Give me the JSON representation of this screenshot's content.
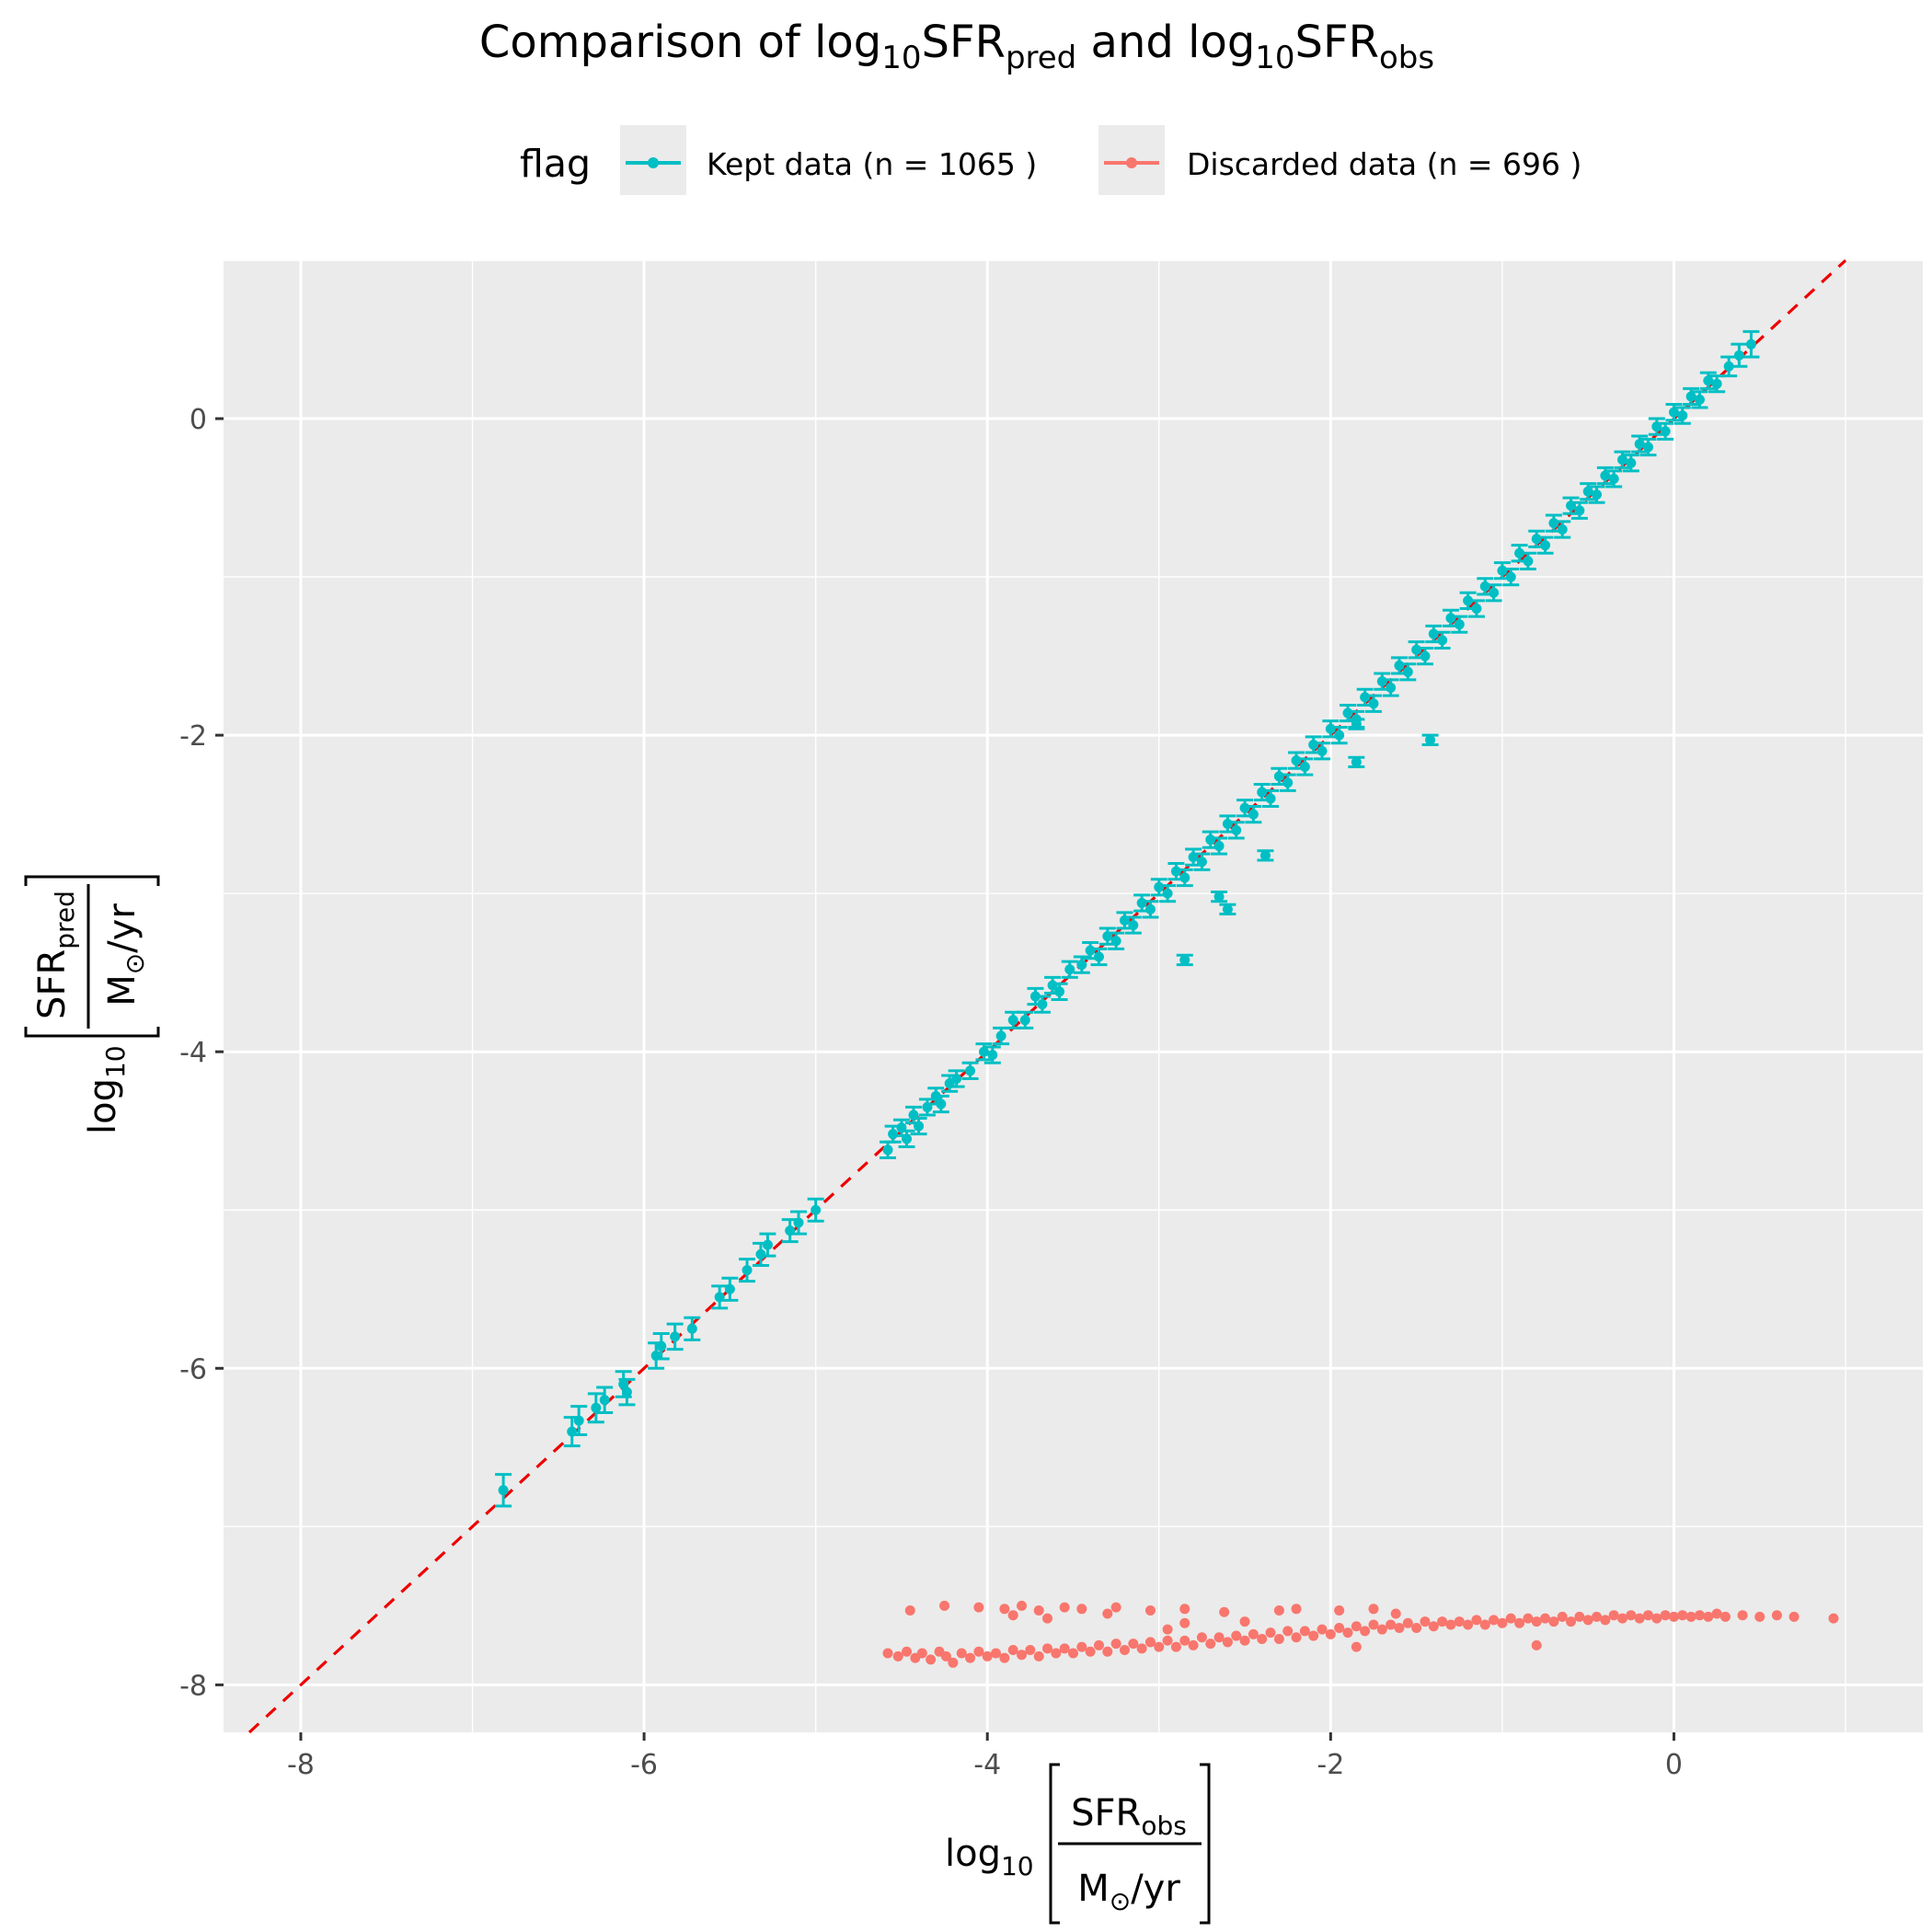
{
  "chart_data": {
    "type": "scatter",
    "title": {
      "prefix": "Comparison of ",
      "log": "log",
      "log_sub": "10",
      "sfr": "SFR",
      "pred_sub": "pred",
      "middle": " and ",
      "obs_sub": "obs"
    },
    "xlabel": {
      "log": "log",
      "log_sub": "10",
      "numerator": "SFR",
      "numerator_sub": "obs",
      "denominator": "M",
      "sun_symbol": "⊙",
      "denominator_rest": "/yr"
    },
    "ylabel": {
      "log": "log",
      "log_sub": "10",
      "numerator": "SFR",
      "numerator_sub": "pred",
      "denominator": "M",
      "sun_symbol": "⊙",
      "denominator_rest": "/yr"
    },
    "xlim": [
      -8.45,
      1.45
    ],
    "ylim": [
      -8.3,
      1.0
    ],
    "x_ticks": [
      -8,
      -6,
      -4,
      -2,
      0
    ],
    "y_ticks": [
      0,
      -2,
      -4,
      -6,
      -8
    ],
    "x_tick_labels": [
      "-8",
      "-6",
      "-4",
      "-2",
      "0"
    ],
    "y_tick_labels": [
      "0",
      "-2",
      "-4",
      "-6",
      "-8"
    ],
    "grid": true,
    "reference_line": {
      "slope": 1,
      "intercept": 0,
      "color": "#ee0000",
      "style": "dashed"
    },
    "legend": {
      "title": "flag",
      "position": "top",
      "entries": [
        {
          "label": "Kept data (n = 1065 )",
          "color": "#00bfc4"
        },
        {
          "label": "Discarded data (n = 696 )",
          "color": "#f8766d"
        }
      ]
    },
    "series": [
      {
        "name": "Kept data (n = 1065 )",
        "color": "#00bfc4",
        "error_bars": true,
        "points": [
          [
            -6.82,
            -6.77,
            0.1
          ],
          [
            -6.42,
            -6.4,
            0.09
          ],
          [
            -6.38,
            -6.33,
            0.09
          ],
          [
            -6.28,
            -6.25,
            0.09
          ],
          [
            -6.23,
            -6.2,
            0.08
          ],
          [
            -6.12,
            -6.1,
            0.08
          ],
          [
            -6.1,
            -6.15,
            0.08
          ],
          [
            -5.93,
            -5.92,
            0.08
          ],
          [
            -5.9,
            -5.86,
            0.08
          ],
          [
            -5.82,
            -5.8,
            0.08
          ],
          [
            -5.72,
            -5.75,
            0.07
          ],
          [
            -5.56,
            -5.55,
            0.07
          ],
          [
            -5.5,
            -5.5,
            0.07
          ],
          [
            -5.4,
            -5.38,
            0.07
          ],
          [
            -5.32,
            -5.28,
            0.07
          ],
          [
            -5.28,
            -5.22,
            0.07
          ],
          [
            -5.15,
            -5.13,
            0.07
          ],
          [
            -5.1,
            -5.08,
            0.07
          ],
          [
            -5.0,
            -5.0,
            0.07
          ],
          [
            -4.58,
            -4.62,
            0.05
          ],
          [
            -4.55,
            -4.52,
            0.05
          ],
          [
            -4.5,
            -4.48,
            0.05
          ],
          [
            -4.47,
            -4.55,
            0.05
          ],
          [
            -4.43,
            -4.4,
            0.05
          ],
          [
            -4.4,
            -4.47,
            0.05
          ],
          [
            -4.35,
            -4.35,
            0.05
          ],
          [
            -4.3,
            -4.28,
            0.05
          ],
          [
            -4.27,
            -4.33,
            0.05
          ],
          [
            -4.22,
            -4.2,
            0.05
          ],
          [
            -4.18,
            -4.17,
            0.05
          ],
          [
            -4.1,
            -4.12,
            0.05
          ],
          [
            -4.02,
            -4.0,
            0.05
          ],
          [
            -3.97,
            -4.02,
            0.05
          ],
          [
            -3.92,
            -3.9,
            0.05
          ],
          [
            -3.85,
            -3.8,
            0.05
          ],
          [
            -3.78,
            -3.8,
            0.05
          ],
          [
            -3.72,
            -3.65,
            0.05
          ],
          [
            -3.68,
            -3.7,
            0.05
          ],
          [
            -3.62,
            -3.58,
            0.05
          ],
          [
            -3.58,
            -3.62,
            0.05
          ],
          [
            -3.52,
            -3.48,
            0.05
          ],
          [
            -3.45,
            -3.45,
            0.05
          ],
          [
            -3.4,
            -3.36,
            0.05
          ],
          [
            -3.35,
            -3.4,
            0.05
          ],
          [
            -3.3,
            -3.27,
            0.05
          ],
          [
            -3.25,
            -3.3,
            0.05
          ],
          [
            -3.2,
            -3.17,
            0.05
          ],
          [
            -3.15,
            -3.2,
            0.05
          ],
          [
            -3.1,
            -3.06,
            0.05
          ],
          [
            -3.05,
            -3.1,
            0.05
          ],
          [
            -3.0,
            -2.96,
            0.05
          ],
          [
            -2.95,
            -3.0,
            0.05
          ],
          [
            -2.9,
            -2.86,
            0.05
          ],
          [
            -2.85,
            -2.9,
            0.05
          ],
          [
            -2.8,
            -2.77,
            0.05
          ],
          [
            -2.75,
            -2.8,
            0.05
          ],
          [
            -2.7,
            -2.66,
            0.05
          ],
          [
            -2.65,
            -2.7,
            0.05
          ],
          [
            -2.6,
            -2.56,
            0.05
          ],
          [
            -2.55,
            -2.6,
            0.05
          ],
          [
            -2.5,
            -2.46,
            0.05
          ],
          [
            -2.45,
            -2.5,
            0.05
          ],
          [
            -2.4,
            -2.36,
            0.05
          ],
          [
            -2.35,
            -2.4,
            0.05
          ],
          [
            -2.3,
            -2.26,
            0.05
          ],
          [
            -2.25,
            -2.3,
            0.05
          ],
          [
            -2.2,
            -2.16,
            0.05
          ],
          [
            -2.15,
            -2.2,
            0.05
          ],
          [
            -2.1,
            -2.06,
            0.05
          ],
          [
            -2.05,
            -2.1,
            0.05
          ],
          [
            -2.0,
            -1.96,
            0.05
          ],
          [
            -1.95,
            -2.0,
            0.05
          ],
          [
            -1.9,
            -1.86,
            0.05
          ],
          [
            -1.85,
            -1.9,
            0.05
          ],
          [
            -1.8,
            -1.76,
            0.05
          ],
          [
            -1.75,
            -1.8,
            0.05
          ],
          [
            -1.7,
            -1.66,
            0.05
          ],
          [
            -1.65,
            -1.7,
            0.05
          ],
          [
            -1.6,
            -1.56,
            0.05
          ],
          [
            -1.55,
            -1.6,
            0.05
          ],
          [
            -1.5,
            -1.46,
            0.05
          ],
          [
            -1.45,
            -1.5,
            0.05
          ],
          [
            -1.4,
            -1.36,
            0.05
          ],
          [
            -1.35,
            -1.4,
            0.05
          ],
          [
            -1.3,
            -1.26,
            0.05
          ],
          [
            -1.25,
            -1.3,
            0.05
          ],
          [
            -1.2,
            -1.15,
            0.05
          ],
          [
            -1.15,
            -1.2,
            0.05
          ],
          [
            -1.1,
            -1.06,
            0.05
          ],
          [
            -1.05,
            -1.1,
            0.05
          ],
          [
            -1.0,
            -0.96,
            0.05
          ],
          [
            -0.95,
            -1.0,
            0.05
          ],
          [
            -0.9,
            -0.85,
            0.05
          ],
          [
            -0.85,
            -0.9,
            0.05
          ],
          [
            -0.8,
            -0.76,
            0.05
          ],
          [
            -0.75,
            -0.8,
            0.05
          ],
          [
            -0.7,
            -0.66,
            0.05
          ],
          [
            -0.65,
            -0.7,
            0.05
          ],
          [
            -0.6,
            -0.55,
            0.05
          ],
          [
            -0.55,
            -0.58,
            0.05
          ],
          [
            -0.5,
            -0.46,
            0.05
          ],
          [
            -0.45,
            -0.48,
            0.05
          ],
          [
            -0.4,
            -0.36,
            0.05
          ],
          [
            -0.35,
            -0.38,
            0.05
          ],
          [
            -0.3,
            -0.26,
            0.05
          ],
          [
            -0.25,
            -0.28,
            0.05
          ],
          [
            -0.2,
            -0.16,
            0.05
          ],
          [
            -0.15,
            -0.18,
            0.05
          ],
          [
            -0.1,
            -0.05,
            0.05
          ],
          [
            -0.05,
            -0.08,
            0.05
          ],
          [
            0.0,
            0.04,
            0.05
          ],
          [
            0.05,
            0.02,
            0.05
          ],
          [
            0.1,
            0.14,
            0.05
          ],
          [
            0.15,
            0.12,
            0.05
          ],
          [
            0.2,
            0.24,
            0.05
          ],
          [
            0.25,
            0.22,
            0.05
          ],
          [
            0.32,
            0.33,
            0.06
          ],
          [
            0.38,
            0.4,
            0.07
          ],
          [
            0.45,
            0.47,
            0.08
          ],
          [
            -1.42,
            -2.03,
            0.03
          ],
          [
            -1.85,
            -1.93,
            0.03
          ],
          [
            -1.85,
            -2.17,
            0.03
          ],
          [
            -2.38,
            -2.76,
            0.03
          ],
          [
            -2.65,
            -3.02,
            0.03
          ],
          [
            -2.6,
            -3.1,
            0.03
          ],
          [
            -2.85,
            -3.42,
            0.03
          ]
        ]
      },
      {
        "name": "Discarded data (n = 696 )",
        "color": "#f8766d",
        "error_bars": false,
        "points": [
          [
            -4.58,
            -7.8
          ],
          [
            -4.52,
            -7.82
          ],
          [
            -4.47,
            -7.79
          ],
          [
            -4.42,
            -7.83
          ],
          [
            -4.38,
            -7.8
          ],
          [
            -4.33,
            -7.84
          ],
          [
            -4.28,
            -7.79
          ],
          [
            -4.24,
            -7.82
          ],
          [
            -4.2,
            -7.86
          ],
          [
            -4.15,
            -7.8
          ],
          [
            -4.1,
            -7.83
          ],
          [
            -4.05,
            -7.79
          ],
          [
            -4.0,
            -7.82
          ],
          [
            -3.95,
            -7.8
          ],
          [
            -3.9,
            -7.83
          ],
          [
            -3.85,
            -7.78
          ],
          [
            -3.8,
            -7.81
          ],
          [
            -3.75,
            -7.78
          ],
          [
            -3.7,
            -7.82
          ],
          [
            -3.65,
            -7.77
          ],
          [
            -3.6,
            -7.8
          ],
          [
            -3.55,
            -7.77
          ],
          [
            -3.5,
            -7.8
          ],
          [
            -3.45,
            -7.76
          ],
          [
            -3.4,
            -7.79
          ],
          [
            -3.35,
            -7.75
          ],
          [
            -3.3,
            -7.79
          ],
          [
            -3.25,
            -7.74
          ],
          [
            -3.2,
            -7.78
          ],
          [
            -3.15,
            -7.74
          ],
          [
            -3.1,
            -7.77
          ],
          [
            -3.05,
            -7.73
          ],
          [
            -3.0,
            -7.76
          ],
          [
            -2.95,
            -7.72
          ],
          [
            -2.9,
            -7.76
          ],
          [
            -2.85,
            -7.72
          ],
          [
            -2.8,
            -7.75
          ],
          [
            -2.75,
            -7.7
          ],
          [
            -2.7,
            -7.74
          ],
          [
            -2.65,
            -7.7
          ],
          [
            -2.6,
            -7.73
          ],
          [
            -2.55,
            -7.69
          ],
          [
            -2.5,
            -7.72
          ],
          [
            -2.45,
            -7.68
          ],
          [
            -2.4,
            -7.71
          ],
          [
            -2.35,
            -7.67
          ],
          [
            -2.3,
            -7.71
          ],
          [
            -2.25,
            -7.66
          ],
          [
            -2.2,
            -7.7
          ],
          [
            -2.15,
            -7.66
          ],
          [
            -2.1,
            -7.69
          ],
          [
            -2.05,
            -7.65
          ],
          [
            -2.0,
            -7.68
          ],
          [
            -1.95,
            -7.64
          ],
          [
            -1.9,
            -7.67
          ],
          [
            -1.85,
            -7.63
          ],
          [
            -1.8,
            -7.66
          ],
          [
            -1.75,
            -7.62
          ],
          [
            -1.7,
            -7.65
          ],
          [
            -1.65,
            -7.62
          ],
          [
            -1.6,
            -7.64
          ],
          [
            -1.55,
            -7.61
          ],
          [
            -1.5,
            -7.64
          ],
          [
            -1.45,
            -7.6
          ],
          [
            -1.4,
            -7.63
          ],
          [
            -1.35,
            -7.6
          ],
          [
            -1.3,
            -7.62
          ],
          [
            -1.25,
            -7.6
          ],
          [
            -1.2,
            -7.62
          ],
          [
            -1.15,
            -7.59
          ],
          [
            -1.1,
            -7.62
          ],
          [
            -1.05,
            -7.59
          ],
          [
            -1.0,
            -7.61
          ],
          [
            -0.95,
            -7.58
          ],
          [
            -0.9,
            -7.61
          ],
          [
            -0.85,
            -7.58
          ],
          [
            -0.8,
            -7.6
          ],
          [
            -0.75,
            -7.58
          ],
          [
            -0.7,
            -7.6
          ],
          [
            -0.65,
            -7.57
          ],
          [
            -0.6,
            -7.6
          ],
          [
            -0.55,
            -7.57
          ],
          [
            -0.5,
            -7.59
          ],
          [
            -0.45,
            -7.57
          ],
          [
            -0.4,
            -7.59
          ],
          [
            -0.35,
            -7.56
          ],
          [
            -0.3,
            -7.58
          ],
          [
            -0.25,
            -7.56
          ],
          [
            -0.2,
            -7.58
          ],
          [
            -0.15,
            -7.56
          ],
          [
            -0.1,
            -7.58
          ],
          [
            -0.05,
            -7.56
          ],
          [
            0.0,
            -7.57
          ],
          [
            0.05,
            -7.56
          ],
          [
            0.1,
            -7.57
          ],
          [
            0.15,
            -7.56
          ],
          [
            0.2,
            -7.57
          ],
          [
            0.25,
            -7.55
          ],
          [
            0.3,
            -7.57
          ],
          [
            0.4,
            -7.56
          ],
          [
            0.5,
            -7.57
          ],
          [
            0.6,
            -7.56
          ],
          [
            0.7,
            -7.57
          ],
          [
            0.93,
            -7.58
          ],
          [
            -4.45,
            -7.53
          ],
          [
            -4.25,
            -7.5
          ],
          [
            -4.05,
            -7.51
          ],
          [
            -3.9,
            -7.52
          ],
          [
            -3.8,
            -7.5
          ],
          [
            -3.7,
            -7.53
          ],
          [
            -3.55,
            -7.51
          ],
          [
            -3.45,
            -7.52
          ],
          [
            -3.3,
            -7.55
          ],
          [
            -3.25,
            -7.51
          ],
          [
            -3.05,
            -7.53
          ],
          [
            -2.85,
            -7.52
          ],
          [
            -2.62,
            -7.54
          ],
          [
            -2.3,
            -7.53
          ],
          [
            -2.2,
            -7.52
          ],
          [
            -1.95,
            -7.53
          ],
          [
            -1.75,
            -7.52
          ],
          [
            -1.62,
            -7.55
          ],
          [
            -3.85,
            -7.56
          ],
          [
            -3.65,
            -7.58
          ],
          [
            -2.85,
            -7.61
          ],
          [
            -2.5,
            -7.6
          ],
          [
            -2.95,
            -7.65
          ],
          [
            -1.85,
            -7.76
          ],
          [
            -0.8,
            -7.75
          ]
        ]
      }
    ]
  }
}
